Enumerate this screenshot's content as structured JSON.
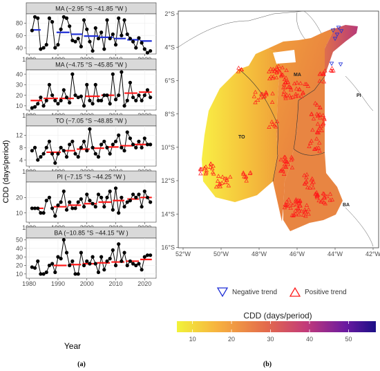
{
  "colors": {
    "strip_bg": "#d9d9d9",
    "panel_border": "#333333",
    "grid": "#ebebeb",
    "points": "#000000",
    "negative_trend": "#1f2fd6",
    "positive_trend": "#ff1a1a",
    "scale_low": "#f1f33a",
    "scale_mid": "#e0534f",
    "scale_high": "#1b0f86"
  },
  "chart_data": [
    {
      "type": "line",
      "ylabel": "CDD (days/period)",
      "xlabel": "Year",
      "x_ticks": [
        "1980",
        "1990",
        "2000",
        "2010",
        "2020"
      ],
      "xlim": [
        1979,
        2024
      ],
      "panels": [
        {
          "strip": "MA (−2.95 °S −41.85 °W )",
          "ylim": [
            30,
            95
          ],
          "y_ticks": [
            "40",
            "60",
            "80"
          ],
          "trend": "negative",
          "x": [
            1981,
            1982,
            1983,
            1984,
            1985,
            1986,
            1987,
            1988,
            1989,
            1990,
            1991,
            1992,
            1993,
            1994,
            1995,
            1996,
            1997,
            1998,
            1999,
            2000,
            2001,
            2002,
            2003,
            2004,
            2005,
            2006,
            2007,
            2008,
            2009,
            2010,
            2011,
            2012,
            2013,
            2014,
            2015,
            2016,
            2017,
            2018,
            2019,
            2020,
            2021,
            2022
          ],
          "values": [
            68,
            90,
            88,
            38,
            40,
            45,
            88,
            82,
            40,
            45,
            70,
            90,
            88,
            75,
            52,
            50,
            55,
            42,
            85,
            70,
            50,
            35,
            72,
            55,
            65,
            38,
            85,
            55,
            62,
            45,
            88,
            60,
            85,
            62,
            55,
            50,
            40,
            56,
            48,
            38,
            32,
            35
          ],
          "trend_segments": [
            {
              "x0": 1980.5,
              "x1": 1984,
              "y": 69
            },
            {
              "x0": 1989.5,
              "x1": 1994,
              "y": 65
            },
            {
              "x0": 1994.5,
              "x1": 1998.5,
              "y": 62
            },
            {
              "x0": 1999,
              "x1": 2004,
              "y": 59
            },
            {
              "x0": 2004.5,
              "x1": 2009,
              "y": 57
            },
            {
              "x0": 2009.5,
              "x1": 2013.5,
              "y": 55
            },
            {
              "x0": 2014,
              "x1": 2018,
              "y": 53
            },
            {
              "x0": 2018.5,
              "x1": 2022.5,
              "y": 51
            }
          ]
        },
        {
          "strip": "MA (−4.75 °S −45.85 °W )",
          "ylim": [
            6,
            44
          ],
          "y_ticks": [
            "10",
            "20",
            "30",
            "40"
          ],
          "trend": "positive",
          "x": [
            1981,
            1982,
            1983,
            1984,
            1985,
            1986,
            1987,
            1988,
            1989,
            1990,
            1991,
            1992,
            1993,
            1994,
            1995,
            1996,
            1997,
            1998,
            1999,
            2000,
            2001,
            2002,
            2003,
            2004,
            2005,
            2006,
            2007,
            2008,
            2009,
            2010,
            2011,
            2012,
            2013,
            2014,
            2015,
            2016,
            2017,
            2018,
            2019,
            2020,
            2021,
            2022
          ],
          "values": [
            8,
            9,
            12,
            18,
            10,
            15,
            30,
            20,
            15,
            12,
            15,
            25,
            18,
            13,
            40,
            20,
            18,
            19,
            10,
            30,
            15,
            12,
            30,
            15,
            15,
            20,
            20,
            12,
            40,
            16,
            20,
            42,
            10,
            15,
            32,
            18,
            15,
            20,
            15,
            20,
            25,
            18
          ],
          "trend_segments": [
            {
              "x0": 1980.5,
              "x1": 1984.5,
              "y": 15
            },
            {
              "x0": 1985,
              "x1": 1990,
              "y": 17
            },
            {
              "x0": 1990.5,
              "x1": 1995.5,
              "y": 17
            },
            {
              "x0": 1999.5,
              "x1": 2004.5,
              "y": 19
            },
            {
              "x0": 2005,
              "x1": 2009.5,
              "y": 20
            },
            {
              "x0": 2013,
              "x1": 2017.5,
              "y": 22
            },
            {
              "x0": 2018,
              "x1": 2022.5,
              "y": 23
            }
          ]
        },
        {
          "strip": "TO (−7.05 °S −48.85 °W )",
          "ylim": [
            2,
            15
          ],
          "y_ticks": [
            "4",
            "8",
            "12"
          ],
          "trend": "positive",
          "x": [
            1981,
            1982,
            1983,
            1984,
            1985,
            1986,
            1987,
            1988,
            1989,
            1990,
            1991,
            1992,
            1993,
            1994,
            1995,
            1996,
            1997,
            1998,
            1999,
            2000,
            2001,
            2002,
            2003,
            2004,
            2005,
            2006,
            2007,
            2008,
            2009,
            2010,
            2011,
            2012,
            2013,
            2014,
            2015,
            2016,
            2017,
            2018,
            2019,
            2020,
            2021,
            2022
          ],
          "values": [
            7,
            8,
            4,
            5,
            6,
            8,
            10,
            6,
            3,
            6,
            8,
            7,
            5,
            9,
            10,
            6,
            5,
            8,
            10,
            7,
            14,
            8,
            6,
            5,
            9,
            10,
            8,
            6,
            9,
            10,
            12,
            8,
            7,
            13,
            11,
            9,
            8,
            10,
            8,
            11,
            9,
            9
          ],
          "trend_segments": [
            {
              "x0": 1986,
              "x1": 1991,
              "y": 6.5
            },
            {
              "x0": 1991.5,
              "x1": 1996,
              "y": 7
            },
            {
              "x0": 1996.5,
              "x1": 2001,
              "y": 7.5
            },
            {
              "x0": 2001.5,
              "x1": 2006,
              "y": 7.8
            },
            {
              "x0": 2006.5,
              "x1": 2011,
              "y": 8.2
            },
            {
              "x0": 2011.5,
              "x1": 2016,
              "y": 8.6
            },
            {
              "x0": 2016.5,
              "x1": 2022.5,
              "y": 9
            }
          ]
        },
        {
          "strip": "PI (−7.15 °S −44.25 °W )",
          "ylim": [
            4,
            30
          ],
          "y_ticks": [
            "10",
            "20"
          ],
          "trend": "positive",
          "x": [
            1981,
            1982,
            1983,
            1984,
            1985,
            1986,
            1987,
            1988,
            1989,
            1990,
            1991,
            1992,
            1993,
            1994,
            1995,
            1996,
            1997,
            1998,
            1999,
            2000,
            2001,
            2002,
            2003,
            2004,
            2005,
            2006,
            2007,
            2008,
            2009,
            2010,
            2011,
            2012,
            2013,
            2014,
            2015,
            2016,
            2017,
            2018,
            2019,
            2020,
            2021,
            2022
          ],
          "values": [
            13,
            13,
            13,
            10,
            10,
            18,
            20,
            13,
            8,
            15,
            17,
            24,
            12,
            17,
            13,
            13,
            17,
            19,
            14,
            22,
            18,
            16,
            14,
            22,
            20,
            14,
            20,
            24,
            12,
            26,
            10,
            20,
            14,
            17,
            18,
            22,
            20,
            22,
            14,
            24,
            20,
            17
          ],
          "trend_segments": [
            {
              "x0": 1980.5,
              "x1": 1985,
              "y": 13
            },
            {
              "x0": 1988.5,
              "x1": 1993,
              "y": 14
            },
            {
              "x0": 1993.5,
              "x1": 1998,
              "y": 15
            },
            {
              "x0": 1999,
              "x1": 2003.5,
              "y": 16
            },
            {
              "x0": 2004,
              "x1": 2008.5,
              "y": 17
            },
            {
              "x0": 2009,
              "x1": 2013,
              "y": 18
            },
            {
              "x0": 2014,
              "x1": 2018,
              "y": 19
            },
            {
              "x0": 2018.5,
              "x1": 2022.5,
              "y": 20
            }
          ]
        },
        {
          "strip": "BA (−10.85 °S −44.15 °W )",
          "ylim": [
            5,
            52
          ],
          "y_ticks": [
            "10",
            "20",
            "30",
            "40",
            "50"
          ],
          "trend": "positive",
          "x": [
            1981,
            1982,
            1983,
            1984,
            1985,
            1986,
            1987,
            1988,
            1989,
            1990,
            1991,
            1992,
            1993,
            1994,
            1995,
            1996,
            1997,
            1998,
            1999,
            2000,
            2001,
            2002,
            2003,
            2004,
            2005,
            2006,
            2007,
            2008,
            2009,
            2010,
            2011,
            2012,
            2013,
            2014,
            2015,
            2016,
            2017,
            2018,
            2019,
            2020,
            2021,
            2022
          ],
          "values": [
            18,
            17,
            25,
            10,
            10,
            12,
            20,
            22,
            12,
            30,
            28,
            50,
            35,
            20,
            25,
            10,
            10,
            35,
            20,
            25,
            22,
            30,
            22,
            12,
            30,
            15,
            25,
            28,
            38,
            20,
            45,
            25,
            35,
            20,
            25,
            22,
            20,
            22,
            15,
            30,
            32,
            32
          ],
          "trend_segments": [
            {
              "x0": 1988.5,
              "x1": 1993,
              "y": 20
            },
            {
              "x0": 1993.5,
              "x1": 1998,
              "y": 21
            },
            {
              "x0": 1998.5,
              "x1": 2003,
              "y": 22
            },
            {
              "x0": 2003.5,
              "x1": 2008,
              "y": 23
            },
            {
              "x0": 2008.5,
              "x1": 2013,
              "y": 24
            },
            {
              "x0": 2013.5,
              "x1": 2018,
              "y": 25
            },
            {
              "x0": 2018.5,
              "x1": 2022.5,
              "y": 27
            }
          ]
        }
      ]
    },
    {
      "type": "heatmap",
      "x_ticks": [
        "52°W",
        "50°W",
        "48°W",
        "46°W",
        "44°W",
        "42°W"
      ],
      "y_ticks": [
        "2°S",
        "4°S",
        "6°S",
        "8°S",
        "10°S",
        "12°S",
        "14°S",
        "16°S"
      ],
      "state_labels": [
        "MA",
        "PI",
        "TO",
        "BA"
      ],
      "legend": {
        "negative": "Negative trend",
        "positive": "Positive trend"
      },
      "colorbar": {
        "title": "CDD (days/period)",
        "ticks": [
          "10",
          "20",
          "30",
          "40",
          "50"
        ],
        "range": [
          6,
          57
        ]
      }
    }
  ],
  "captions": [
    "(a)",
    "(b)"
  ]
}
